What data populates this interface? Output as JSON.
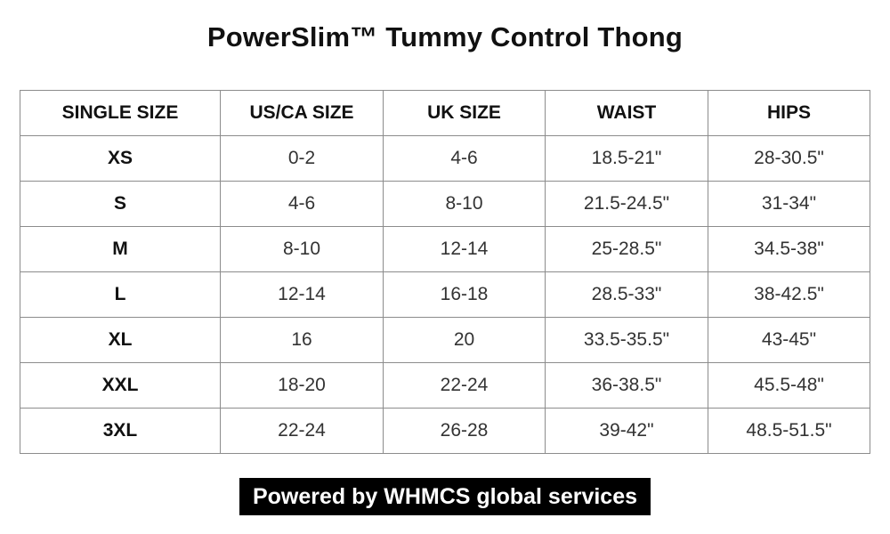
{
  "title": "PowerSlim™ Tummy Control Thong",
  "table": {
    "headers": [
      "SINGLE SIZE",
      "US/CA SIZE",
      "UK SIZE",
      "WAIST",
      "HIPS"
    ],
    "rows": [
      [
        "XS",
        "0-2",
        "4-6",
        "18.5-21\"",
        "28-30.5\""
      ],
      [
        "S",
        "4-6",
        "8-10",
        "21.5-24.5\"",
        "31-34\""
      ],
      [
        "M",
        "8-10",
        "12-14",
        "25-28.5\"",
        "34.5-38\""
      ],
      [
        "L",
        "12-14",
        "16-18",
        "28.5-33\"",
        "38-42.5\""
      ],
      [
        "XL",
        "16",
        "20",
        "33.5-35.5\"",
        "43-45\""
      ],
      [
        "XXL",
        "18-20",
        "22-24",
        "36-38.5\"",
        "45.5-48\""
      ],
      [
        "3XL",
        "22-24",
        "26-28",
        "39-42\"",
        "48.5-51.5\""
      ]
    ]
  },
  "footer": {
    "text": "Powered by WHMCS global services",
    "background": "#000000",
    "color": "#ffffff"
  }
}
